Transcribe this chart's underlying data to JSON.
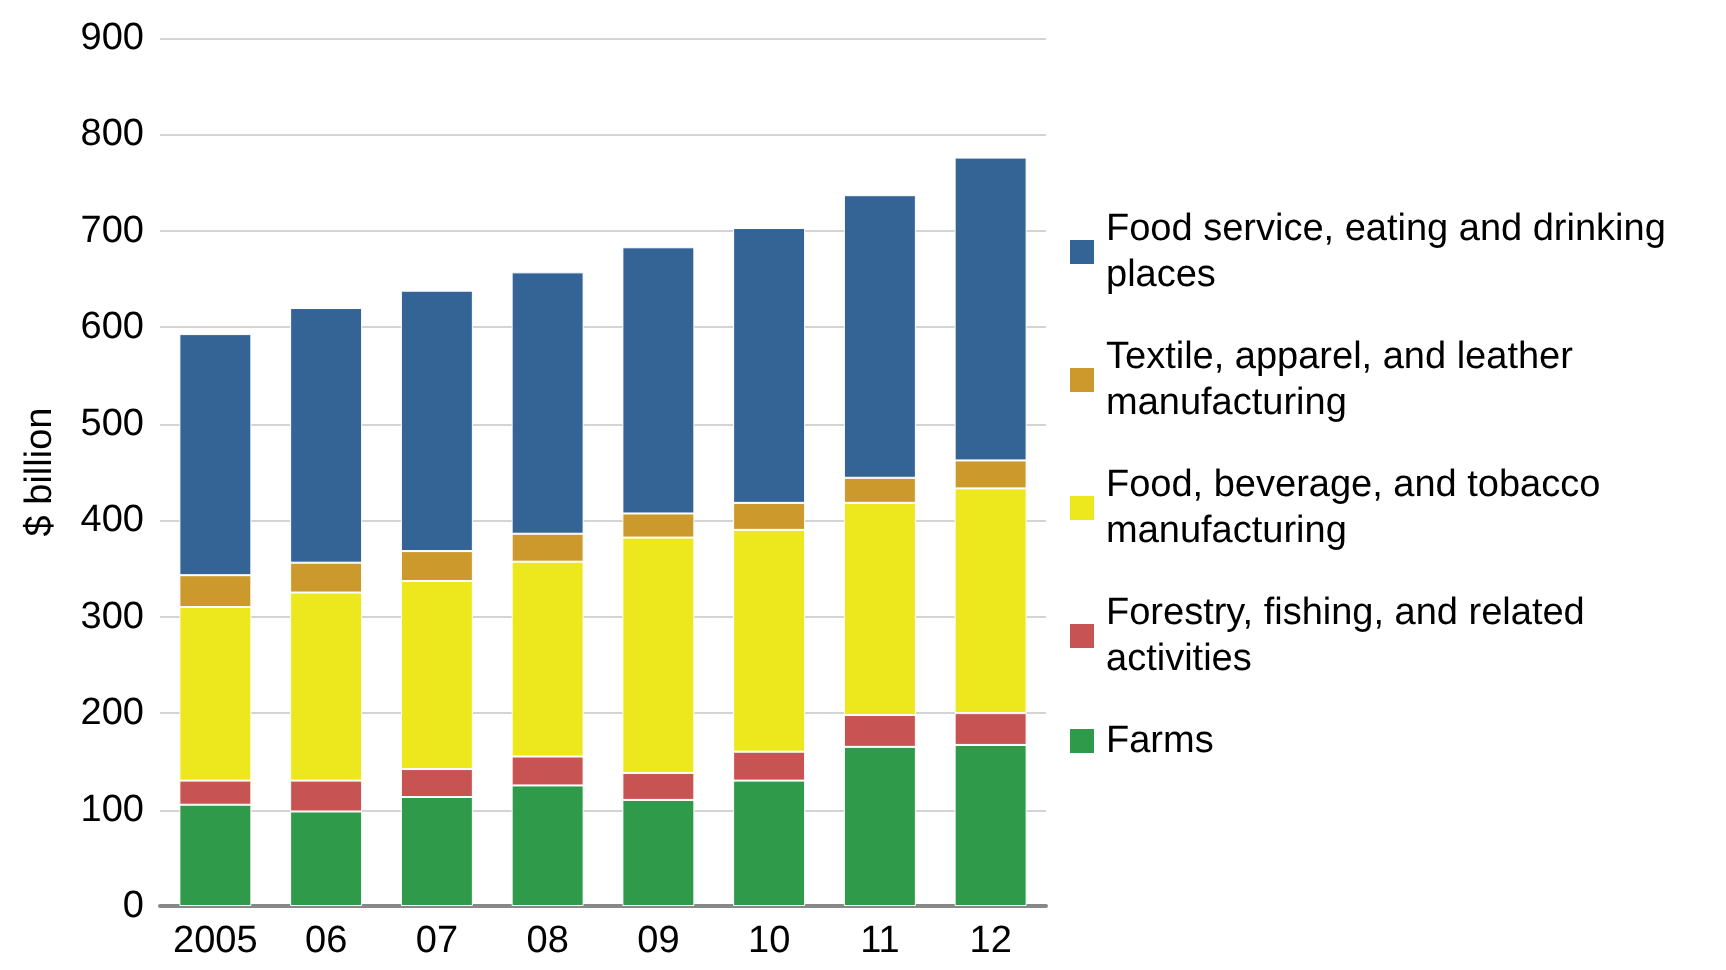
{
  "chart_data": {
    "type": "bar",
    "stacked": true,
    "ylabel": "$ billion",
    "categories": [
      "2005",
      "06",
      "07",
      "08",
      "09",
      "10",
      "11",
      "12"
    ],
    "series": [
      {
        "name": "Farms",
        "color": "#2e9a4a",
        "values": [
          105,
          98,
          113,
          125,
          110,
          130,
          165,
          167
        ]
      },
      {
        "name": "Forestry, fishing, and related activities",
        "color": "#c85353",
        "values": [
          25,
          32,
          29,
          30,
          28,
          30,
          33,
          33
        ]
      },
      {
        "name": "Food, beverage, and tobacco manufacturing",
        "color": "#ede81e",
        "values": [
          180,
          195,
          195,
          202,
          244,
          230,
          220,
          233
        ]
      },
      {
        "name": "Textile, apparel, and leather manufacturing",
        "color": "#cc9a2c",
        "values": [
          33,
          31,
          31,
          29,
          25,
          28,
          26,
          29
        ]
      },
      {
        "name": "Food service, eating and drinking places",
        "color": "#346496",
        "values": [
          250,
          264,
          270,
          271,
          276,
          285,
          293,
          314
        ]
      }
    ],
    "ylim": [
      0,
      900
    ],
    "yticks": [
      0,
      100,
      200,
      300,
      400,
      500,
      600,
      700,
      800,
      900
    ],
    "grid": "y",
    "legend": "right"
  }
}
